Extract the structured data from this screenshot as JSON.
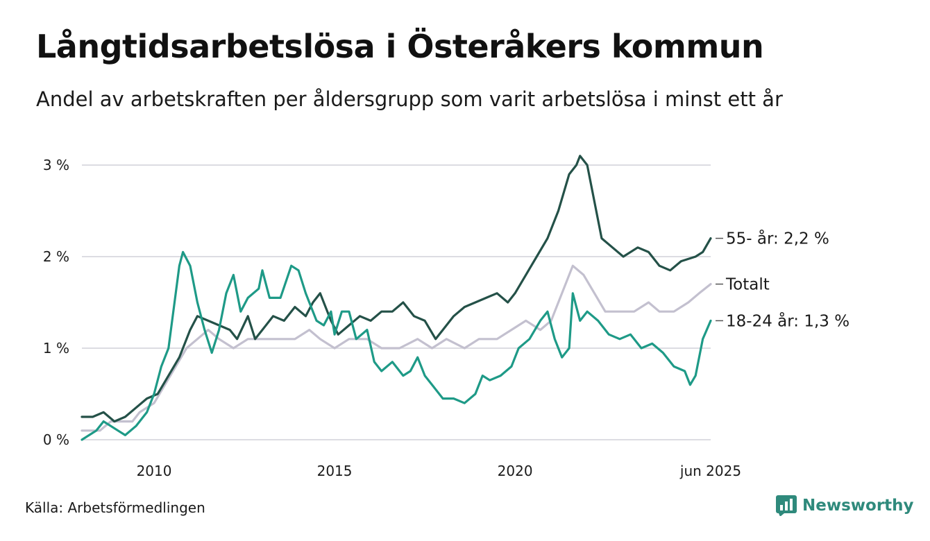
{
  "title": "Långtidsarbetslösa i Österåkers kommun",
  "subtitle": "Andel av arbetskraften per åldersgrupp som varit arbetslösa i minst ett år",
  "source": "Källa: Arbetsförmedlingen",
  "brand": {
    "name": "Newsworthy",
    "color": "#2f8a7c",
    "icon": "bar-chart-logo-icon"
  },
  "chart_data": {
    "type": "line",
    "title": "Långtidsarbetslösa i Österåkers kommun",
    "subtitle": "Andel av arbetskraften per åldersgrupp som varit arbetslösa i minst ett år",
    "x_unit": "year",
    "xlim": [
      2008.0,
      2025.42
    ],
    "ylim": [
      0,
      3.3
    ],
    "y_ticks": [
      {
        "value": 0,
        "label": "0 %"
      },
      {
        "value": 1,
        "label": "1 %"
      },
      {
        "value": 2,
        "label": "2 %"
      },
      {
        "value": 3,
        "label": "3 %"
      }
    ],
    "x_ticks": [
      {
        "value": 2010,
        "label": "2010"
      },
      {
        "value": 2015,
        "label": "2015"
      },
      {
        "value": 2020,
        "label": "2020"
      },
      {
        "value": 2025.42,
        "label": "jun 2025"
      }
    ],
    "grid": true,
    "legend": "inline labels at right end of lines",
    "series": [
      {
        "name": "Totalt",
        "label": "Totalt",
        "color": "#c3c0cf",
        "points": [
          [
            2008.0,
            0.1
          ],
          [
            2008.5,
            0.1
          ],
          [
            2008.8,
            0.2
          ],
          [
            2009.4,
            0.2
          ],
          [
            2009.6,
            0.3
          ],
          [
            2010.0,
            0.4
          ],
          [
            2010.3,
            0.6
          ],
          [
            2010.6,
            0.8
          ],
          [
            2010.9,
            1.0
          ],
          [
            2011.2,
            1.1
          ],
          [
            2011.5,
            1.2
          ],
          [
            2011.8,
            1.1
          ],
          [
            2012.2,
            1.0
          ],
          [
            2012.6,
            1.1
          ],
          [
            2013.0,
            1.1
          ],
          [
            2013.5,
            1.1
          ],
          [
            2013.9,
            1.1
          ],
          [
            2014.3,
            1.2
          ],
          [
            2014.6,
            1.1
          ],
          [
            2015.0,
            1.0
          ],
          [
            2015.4,
            1.1
          ],
          [
            2015.9,
            1.1
          ],
          [
            2016.3,
            1.0
          ],
          [
            2016.8,
            1.0
          ],
          [
            2017.3,
            1.1
          ],
          [
            2017.7,
            1.0
          ],
          [
            2018.1,
            1.1
          ],
          [
            2018.6,
            1.0
          ],
          [
            2019.0,
            1.1
          ],
          [
            2019.5,
            1.1
          ],
          [
            2019.9,
            1.2
          ],
          [
            2020.3,
            1.3
          ],
          [
            2020.7,
            1.2
          ],
          [
            2021.0,
            1.3
          ],
          [
            2021.3,
            1.6
          ],
          [
            2021.6,
            1.9
          ],
          [
            2021.9,
            1.8
          ],
          [
            2022.2,
            1.6
          ],
          [
            2022.5,
            1.4
          ],
          [
            2022.9,
            1.4
          ],
          [
            2023.3,
            1.4
          ],
          [
            2023.7,
            1.5
          ],
          [
            2024.0,
            1.4
          ],
          [
            2024.4,
            1.4
          ],
          [
            2024.8,
            1.5
          ],
          [
            2025.1,
            1.6
          ],
          [
            2025.42,
            1.7
          ]
        ]
      },
      {
        "name": "55- år",
        "label": "55- år: 2,2 %",
        "color": "#245148",
        "points": [
          [
            2008.0,
            0.25
          ],
          [
            2008.3,
            0.25
          ],
          [
            2008.6,
            0.3
          ],
          [
            2008.9,
            0.2
          ],
          [
            2009.2,
            0.25
          ],
          [
            2009.5,
            0.35
          ],
          [
            2009.8,
            0.45
          ],
          [
            2010.1,
            0.5
          ],
          [
            2010.4,
            0.7
          ],
          [
            2010.7,
            0.9
          ],
          [
            2011.0,
            1.2
          ],
          [
            2011.2,
            1.35
          ],
          [
            2011.5,
            1.3
          ],
          [
            2011.8,
            1.25
          ],
          [
            2012.1,
            1.2
          ],
          [
            2012.3,
            1.1
          ],
          [
            2012.6,
            1.35
          ],
          [
            2012.8,
            1.1
          ],
          [
            2013.0,
            1.2
          ],
          [
            2013.3,
            1.35
          ],
          [
            2013.6,
            1.3
          ],
          [
            2013.9,
            1.45
          ],
          [
            2014.2,
            1.35
          ],
          [
            2014.4,
            1.5
          ],
          [
            2014.6,
            1.6
          ],
          [
            2014.9,
            1.3
          ],
          [
            2015.1,
            1.15
          ],
          [
            2015.4,
            1.25
          ],
          [
            2015.7,
            1.35
          ],
          [
            2016.0,
            1.3
          ],
          [
            2016.3,
            1.4
          ],
          [
            2016.6,
            1.4
          ],
          [
            2016.9,
            1.5
          ],
          [
            2017.2,
            1.35
          ],
          [
            2017.5,
            1.3
          ],
          [
            2017.8,
            1.1
          ],
          [
            2018.0,
            1.2
          ],
          [
            2018.3,
            1.35
          ],
          [
            2018.6,
            1.45
          ],
          [
            2018.9,
            1.5
          ],
          [
            2019.2,
            1.55
          ],
          [
            2019.5,
            1.6
          ],
          [
            2019.8,
            1.5
          ],
          [
            2020.0,
            1.6
          ],
          [
            2020.3,
            1.8
          ],
          [
            2020.6,
            2.0
          ],
          [
            2020.9,
            2.2
          ],
          [
            2021.2,
            2.5
          ],
          [
            2021.5,
            2.9
          ],
          [
            2021.7,
            3.0
          ],
          [
            2021.8,
            3.1
          ],
          [
            2022.0,
            3.0
          ],
          [
            2022.2,
            2.6
          ],
          [
            2022.4,
            2.2
          ],
          [
            2022.7,
            2.1
          ],
          [
            2023.0,
            2.0
          ],
          [
            2023.4,
            2.1
          ],
          [
            2023.7,
            2.05
          ],
          [
            2024.0,
            1.9
          ],
          [
            2024.3,
            1.85
          ],
          [
            2024.6,
            1.95
          ],
          [
            2025.0,
            2.0
          ],
          [
            2025.2,
            2.05
          ],
          [
            2025.42,
            2.2
          ]
        ]
      },
      {
        "name": "18-24 år",
        "label": "18-24 år: 1,3 %",
        "color": "#1e9a87",
        "points": [
          [
            2008.0,
            0.0
          ],
          [
            2008.2,
            0.05
          ],
          [
            2008.4,
            0.1
          ],
          [
            2008.6,
            0.2
          ],
          [
            2008.8,
            0.15
          ],
          [
            2009.0,
            0.1
          ],
          [
            2009.2,
            0.05
          ],
          [
            2009.5,
            0.15
          ],
          [
            2009.8,
            0.3
          ],
          [
            2010.0,
            0.5
          ],
          [
            2010.2,
            0.8
          ],
          [
            2010.4,
            1.0
          ],
          [
            2010.5,
            1.3
          ],
          [
            2010.6,
            1.6
          ],
          [
            2010.7,
            1.9
          ],
          [
            2010.8,
            2.05
          ],
          [
            2011.0,
            1.9
          ],
          [
            2011.2,
            1.5
          ],
          [
            2011.4,
            1.2
          ],
          [
            2011.6,
            0.95
          ],
          [
            2011.8,
            1.2
          ],
          [
            2012.0,
            1.6
          ],
          [
            2012.2,
            1.8
          ],
          [
            2012.4,
            1.4
          ],
          [
            2012.6,
            1.55
          ],
          [
            2012.9,
            1.65
          ],
          [
            2013.0,
            1.85
          ],
          [
            2013.2,
            1.55
          ],
          [
            2013.5,
            1.55
          ],
          [
            2013.8,
            1.9
          ],
          [
            2014.0,
            1.85
          ],
          [
            2014.2,
            1.6
          ],
          [
            2014.5,
            1.3
          ],
          [
            2014.7,
            1.25
          ],
          [
            2014.9,
            1.4
          ],
          [
            2015.0,
            1.15
          ],
          [
            2015.2,
            1.4
          ],
          [
            2015.4,
            1.4
          ],
          [
            2015.6,
            1.1
          ],
          [
            2015.9,
            1.2
          ],
          [
            2016.1,
            0.85
          ],
          [
            2016.3,
            0.75
          ],
          [
            2016.6,
            0.85
          ],
          [
            2016.9,
            0.7
          ],
          [
            2017.1,
            0.75
          ],
          [
            2017.3,
            0.9
          ],
          [
            2017.5,
            0.7
          ],
          [
            2017.7,
            0.6
          ],
          [
            2018.0,
            0.45
          ],
          [
            2018.3,
            0.45
          ],
          [
            2018.6,
            0.4
          ],
          [
            2018.9,
            0.5
          ],
          [
            2019.1,
            0.7
          ],
          [
            2019.3,
            0.65
          ],
          [
            2019.6,
            0.7
          ],
          [
            2019.9,
            0.8
          ],
          [
            2020.1,
            1.0
          ],
          [
            2020.4,
            1.1
          ],
          [
            2020.7,
            1.3
          ],
          [
            2020.9,
            1.4
          ],
          [
            2021.1,
            1.1
          ],
          [
            2021.3,
            0.9
          ],
          [
            2021.5,
            1.0
          ],
          [
            2021.6,
            1.6
          ],
          [
            2021.8,
            1.3
          ],
          [
            2022.0,
            1.4
          ],
          [
            2022.3,
            1.3
          ],
          [
            2022.6,
            1.15
          ],
          [
            2022.9,
            1.1
          ],
          [
            2023.2,
            1.15
          ],
          [
            2023.5,
            1.0
          ],
          [
            2023.8,
            1.05
          ],
          [
            2024.1,
            0.95
          ],
          [
            2024.4,
            0.8
          ],
          [
            2024.7,
            0.75
          ],
          [
            2024.85,
            0.6
          ],
          [
            2025.0,
            0.7
          ],
          [
            2025.2,
            1.1
          ],
          [
            2025.42,
            1.3
          ]
        ]
      }
    ]
  }
}
